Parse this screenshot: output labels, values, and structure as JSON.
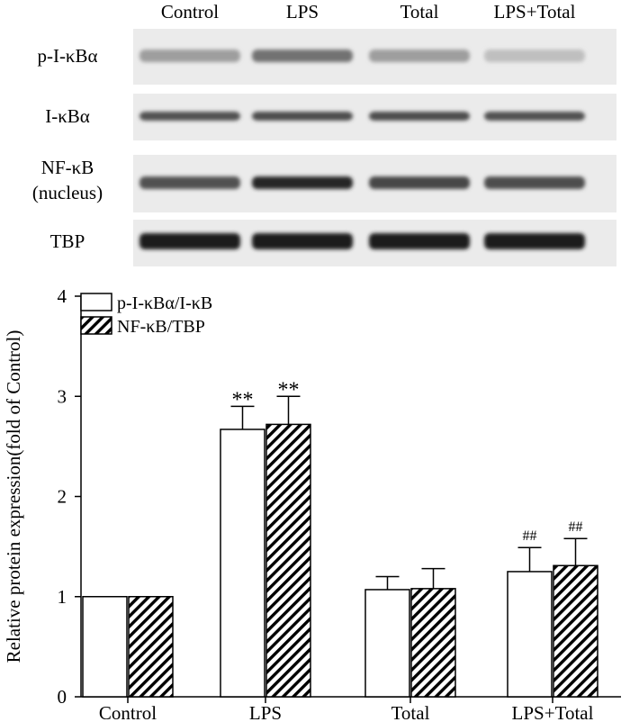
{
  "blot": {
    "lanes": [
      "Control",
      "LPS",
      "Total",
      "LPS+Total"
    ],
    "rows": [
      {
        "label": [
          "p-I-κBα"
        ],
        "intensity": [
          0.35,
          0.55,
          0.35,
          0.2
        ]
      },
      {
        "label": [
          "I-κBα"
        ],
        "intensity": [
          0.7,
          0.72,
          0.72,
          0.7
        ]
      },
      {
        "label": [
          "NF-κB",
          "(nucleus)"
        ],
        "intensity": [
          0.7,
          0.9,
          0.75,
          0.72
        ]
      },
      {
        "label": [
          "TBP"
        ],
        "intensity": [
          0.95,
          0.95,
          0.95,
          0.95
        ]
      }
    ]
  },
  "chart_data": {
    "type": "bar",
    "categories": [
      "Control",
      "LPS",
      "Total",
      "LPS+Total"
    ],
    "series": [
      {
        "name": "p-I-κBα/I-κB",
        "values": [
          1.0,
          2.67,
          1.07,
          1.25
        ],
        "errors": [
          0.0,
          0.23,
          0.13,
          0.24
        ],
        "marks": [
          "",
          "**",
          "",
          "##"
        ],
        "fill": "#ffffff"
      },
      {
        "name": "NF-κB/TBP",
        "values": [
          1.0,
          2.72,
          1.08,
          1.31
        ],
        "errors": [
          0.0,
          0.28,
          0.2,
          0.27
        ],
        "marks": [
          "",
          "**",
          "",
          "##"
        ],
        "fill": "hatch"
      }
    ],
    "ylabel": "Relative protein expression(fold of Control)",
    "xlabel": "",
    "ylim": [
      0,
      4
    ],
    "yticks": [
      0,
      1,
      2,
      3,
      4
    ],
    "legend": "top-left",
    "grid": false
  }
}
